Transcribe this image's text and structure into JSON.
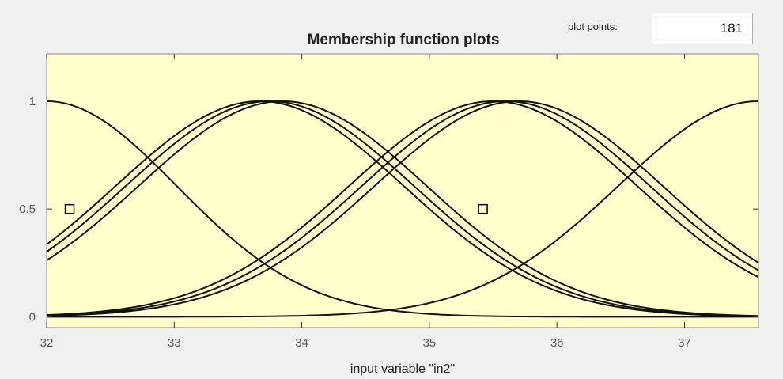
{
  "window": {
    "plot_points_label": "plot points:",
    "plot_points_value": "181"
  },
  "chart_data": {
    "type": "line",
    "title": "Membership function plots",
    "xlabel": "input variable \"in2\"",
    "ylabel": "",
    "xlim": [
      32,
      37.58
    ],
    "ylim": [
      -0.05,
      1.22
    ],
    "xticks": [
      32,
      33,
      34,
      35,
      36,
      37
    ],
    "yticks": [
      0,
      0.5,
      1
    ],
    "grid": false,
    "background_color": "#ffffcc",
    "line_color": "#111111",
    "series": [
      {
        "function": "gaussmf",
        "center": 32.0,
        "sigma": 1.02
      },
      {
        "function": "gaussmf",
        "center": 33.67,
        "sigma": 1.13
      },
      {
        "function": "gaussmf",
        "center": 33.75,
        "sigma": 1.13
      },
      {
        "function": "gaussmf",
        "center": 33.85,
        "sigma": 1.13
      },
      {
        "function": "gaussmf",
        "center": 35.5,
        "sigma": 1.13
      },
      {
        "function": "gaussmf",
        "center": 35.6,
        "sigma": 1.13
      },
      {
        "function": "gaussmf",
        "center": 35.7,
        "sigma": 1.13
      },
      {
        "function": "gaussmf",
        "center": 37.58,
        "sigma": 1.1
      }
    ],
    "markers": [
      {
        "x": 32.18,
        "y": 0.5,
        "shape": "square"
      },
      {
        "x": 35.42,
        "y": 0.5,
        "shape": "square"
      }
    ]
  }
}
